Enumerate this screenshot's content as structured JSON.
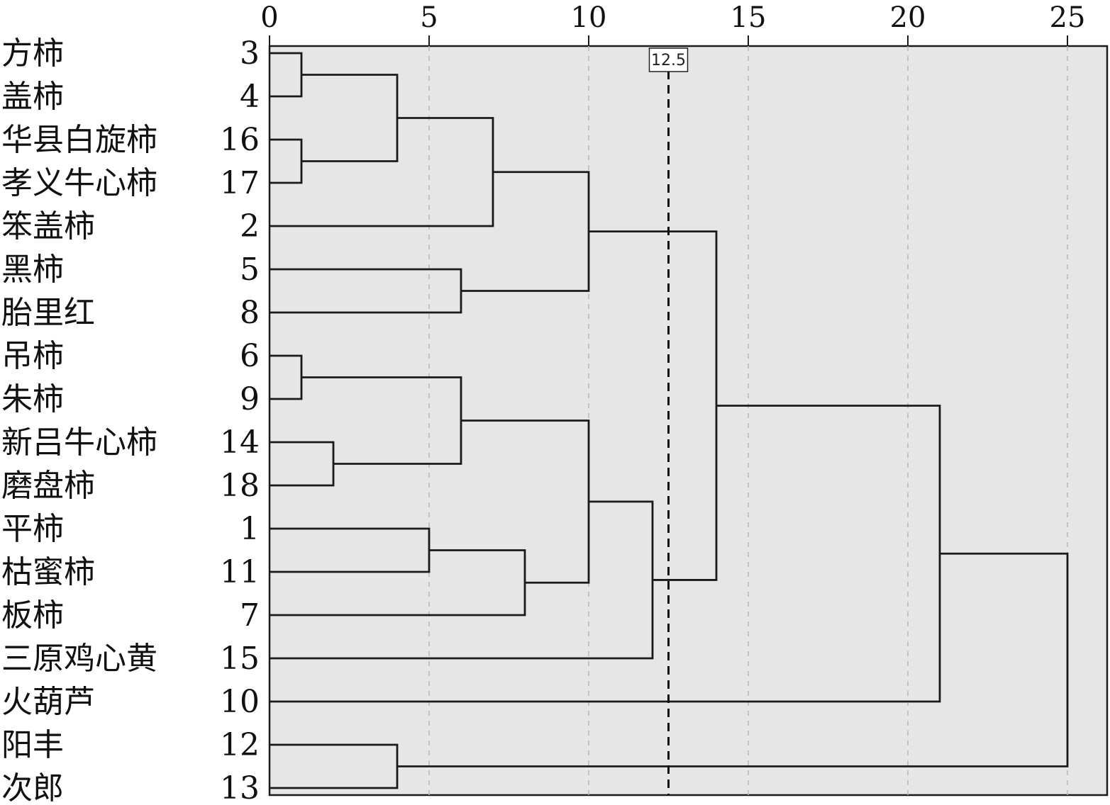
{
  "chart_data": {
    "type": "dendrogram",
    "orientation": "horizontal",
    "x_axis": {
      "ticks": [
        0,
        5,
        10,
        15,
        20,
        25
      ],
      "range": [
        0,
        26.2
      ],
      "position": "top"
    },
    "grid": {
      "vertical_dashed": true
    },
    "cutoff": {
      "value": 12.5,
      "label": "12.5"
    },
    "leaves": [
      {
        "name": "方柿",
        "id": "3"
      },
      {
        "name": "盖柿",
        "id": "4"
      },
      {
        "name": "华县白旋柿",
        "id": "16"
      },
      {
        "name": "孝义牛心柿",
        "id": "17"
      },
      {
        "name": "笨盖柿",
        "id": "2"
      },
      {
        "name": "黑柿",
        "id": "5"
      },
      {
        "name": "胎里红",
        "id": "8"
      },
      {
        "name": "吊柿",
        "id": "6"
      },
      {
        "name": "朱柿",
        "id": "9"
      },
      {
        "name": "新吕牛心柿",
        "id": "14"
      },
      {
        "name": "磨盘柿",
        "id": "18"
      },
      {
        "name": "平柿",
        "id": "1"
      },
      {
        "name": "枯蜜柿",
        "id": "11"
      },
      {
        "name": "板柿",
        "id": "7"
      },
      {
        "name": "三原鸡心黄",
        "id": "15"
      },
      {
        "name": "火葫芦",
        "id": "10"
      },
      {
        "name": "阳丰",
        "id": "12"
      },
      {
        "name": "次郎",
        "id": "13"
      }
    ],
    "merges": [
      {
        "id": "A",
        "left": "L0",
        "right": "L1",
        "height": 1
      },
      {
        "id": "B",
        "left": "L2",
        "right": "L3",
        "height": 1
      },
      {
        "id": "C",
        "left": "A",
        "right": "B",
        "height": 4
      },
      {
        "id": "D",
        "left": "C",
        "right": "L4",
        "height": 7
      },
      {
        "id": "E",
        "left": "L5",
        "right": "L6",
        "height": 6
      },
      {
        "id": "F",
        "left": "D",
        "right": "E",
        "height": 10
      },
      {
        "id": "G",
        "left": "L7",
        "right": "L8",
        "height": 1
      },
      {
        "id": "H",
        "left": "L9",
        "right": "L10",
        "height": 2
      },
      {
        "id": "I",
        "left": "G",
        "right": "H",
        "height": 6
      },
      {
        "id": "J",
        "left": "L11",
        "right": "L12",
        "height": 5
      },
      {
        "id": "K",
        "left": "J",
        "right": "L13",
        "height": 8
      },
      {
        "id": "M",
        "left": "I",
        "right": "K",
        "height": 10
      },
      {
        "id": "N",
        "left": "M",
        "right": "L14",
        "height": 12
      },
      {
        "id": "O",
        "left": "F",
        "right": "N",
        "height": 14
      },
      {
        "id": "P",
        "left": "O",
        "right": "L15",
        "height": 21
      },
      {
        "id": "Q",
        "left": "L16",
        "right": "L17",
        "height": 4
      },
      {
        "id": "R",
        "left": "P",
        "right": "Q",
        "height": 25
      }
    ],
    "colors": {
      "plot_background": "#e6e6e6",
      "lines": "#1a1a1a",
      "grid": "#b8b8b8",
      "cutoff_line": "#111111"
    }
  }
}
